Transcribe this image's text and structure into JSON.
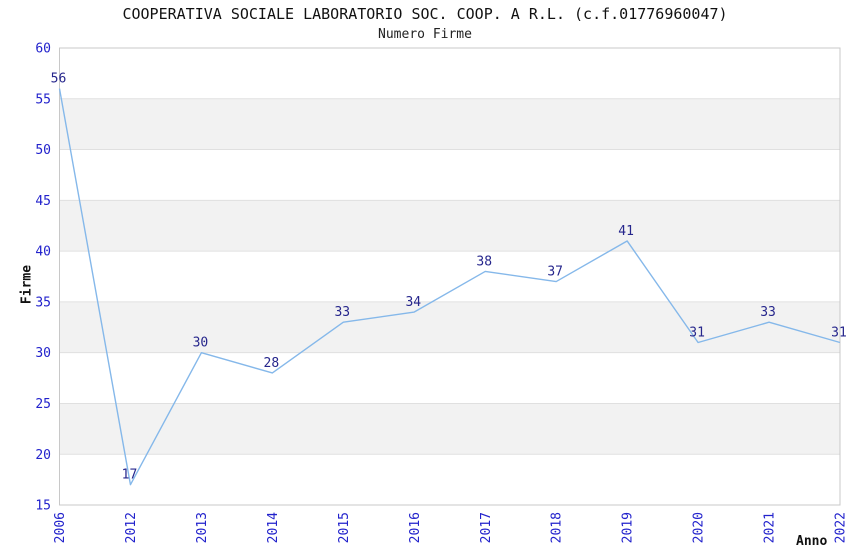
{
  "title": "COOPERATIVA SOCIALE LABORATORIO SOC. COOP. A R.L. (c.f.01776960047)",
  "subtitle": "Numero Firme",
  "chart_data": {
    "type": "line",
    "x": [
      "2006",
      "2012",
      "2013",
      "2014",
      "2015",
      "2016",
      "2017",
      "2018",
      "2019",
      "2020",
      "2021",
      "2022"
    ],
    "values": [
      56,
      17,
      30,
      28,
      33,
      34,
      38,
      37,
      41,
      31,
      33,
      31
    ],
    "title": "COOPERATIVA SOCIALE LABORATORIO SOC. COOP. A R.L. (c.f.01776960047)",
    "subtitle": "Numero Firme",
    "xlabel": "Anno",
    "ylabel": "Firme",
    "ylim": [
      15,
      60
    ],
    "yticks": [
      15,
      20,
      25,
      30,
      35,
      40,
      45,
      50,
      55,
      60
    ],
    "grid": "horizontal-bands-alternating",
    "legend": "none",
    "data_labels": true,
    "colors": {
      "line": "#85b8ea",
      "data_label": "#26268c",
      "tick_label": "#2222cc",
      "band": "#f2f2f2",
      "grid_line": "#e0e0e0",
      "plot_border": "#c8c8c8",
      "text": "#111111"
    }
  }
}
